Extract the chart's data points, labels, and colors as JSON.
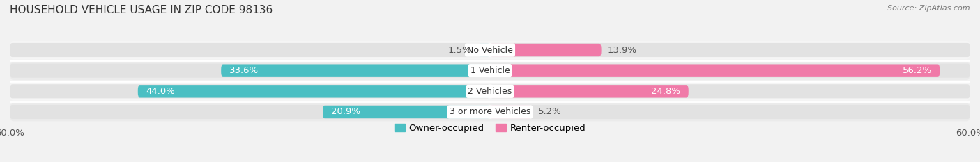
{
  "title": "HOUSEHOLD VEHICLE USAGE IN ZIP CODE 98136",
  "source": "Source: ZipAtlas.com",
  "categories": [
    "No Vehicle",
    "1 Vehicle",
    "2 Vehicles",
    "3 or more Vehicles"
  ],
  "owner_values": [
    1.5,
    33.6,
    44.0,
    20.9
  ],
  "renter_values": [
    13.9,
    56.2,
    24.8,
    5.2
  ],
  "owner_color": "#4bbfc3",
  "renter_color": "#f07aa8",
  "background_color": "#f2f2f2",
  "bar_background_color": "#e2e2e2",
  "row_bg_even": "#ebebeb",
  "row_bg_odd": "#f5f5f5",
  "xlim": 60.0,
  "label_fontsize": 9.5,
  "title_fontsize": 11,
  "bar_height": 0.62,
  "legend_fontsize": 9.5
}
